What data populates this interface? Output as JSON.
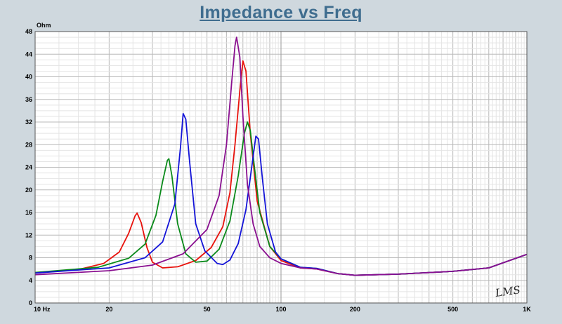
{
  "chart_data": {
    "type": "line",
    "title": "Impedance vs Freq",
    "ylabel": "Ohm",
    "xscale": "log",
    "xlim": [
      10,
      1000
    ],
    "ylim": [
      0,
      48
    ],
    "grid": true,
    "x_ticks": [
      {
        "value": 10,
        "label": "10  Hz"
      },
      {
        "value": 20,
        "label": "20"
      },
      {
        "value": 50,
        "label": "50"
      },
      {
        "value": 100,
        "label": "100"
      },
      {
        "value": 200,
        "label": "200"
      },
      {
        "value": 500,
        "label": "500"
      },
      {
        "value": 1000,
        "label": "1K"
      }
    ],
    "y_ticks": [
      0,
      4,
      8,
      12,
      16,
      20,
      24,
      28,
      32,
      36,
      40,
      44,
      48
    ],
    "series": [
      {
        "color": "#e8120c",
        "x": [
          10,
          15,
          19,
          22,
          24,
          25.5,
          26,
          27,
          28.5,
          30,
          33,
          38,
          45,
          52,
          58,
          62,
          65,
          68,
          70,
          72,
          75,
          80,
          90,
          100,
          120,
          140,
          170,
          200,
          300,
          500,
          700,
          1000
        ],
        "y": [
          5.3,
          5.9,
          7.0,
          9.0,
          12.3,
          15.4,
          15.9,
          14.2,
          9.8,
          7.2,
          6.2,
          6.4,
          7.5,
          9.8,
          13.5,
          19.5,
          28,
          37.5,
          42.8,
          41,
          30,
          18,
          10,
          7.5,
          6.2,
          6.0,
          5.2,
          4.9,
          5.1,
          5.6,
          6.2,
          8.6
        ]
      },
      {
        "color": "#0a8a1a",
        "x": [
          10,
          18,
          24,
          28,
          31,
          33,
          34.5,
          35,
          36,
          38,
          41,
          45,
          50,
          56,
          62,
          67,
          71,
          73,
          75,
          78,
          82,
          90,
          100,
          120,
          140,
          170,
          200,
          300,
          500,
          700,
          1000
        ],
        "y": [
          5.4,
          6.3,
          7.9,
          10.4,
          15.5,
          21.5,
          25.2,
          25.5,
          22.5,
          14,
          8.7,
          7.2,
          7.4,
          9.5,
          14.5,
          22.5,
          30,
          32,
          30.5,
          24,
          16,
          10,
          7.8,
          6.3,
          6.1,
          5.2,
          4.9,
          5.1,
          5.6,
          6.2,
          8.6
        ]
      },
      {
        "color": "#1414d8",
        "x": [
          10,
          20,
          28,
          33,
          37,
          39,
          40,
          41,
          42.5,
          45,
          49,
          55,
          58,
          62,
          67,
          72,
          76,
          79,
          81,
          84,
          88,
          95,
          100,
          120,
          140,
          170,
          200,
          300,
          500,
          700,
          1000
        ],
        "y": [
          5.3,
          6.2,
          8.0,
          10.8,
          17.5,
          27.5,
          33.5,
          32.5,
          25,
          14,
          9.2,
          7.0,
          6.8,
          7.6,
          10.5,
          16.5,
          24,
          29.5,
          29,
          22,
          14,
          9.0,
          7.8,
          6.3,
          6.1,
          5.2,
          4.9,
          5.1,
          5.6,
          6.2,
          8.6
        ]
      },
      {
        "color": "#8a1090",
        "x": [
          10,
          20,
          30,
          40,
          50,
          56,
          60,
          63,
          65,
          66,
          68,
          70,
          73,
          77,
          82,
          90,
          100,
          120,
          140,
          170,
          200,
          300,
          500,
          700,
          1000
        ],
        "y": [
          5.0,
          5.7,
          6.7,
          8.7,
          13.0,
          19.0,
          28.0,
          39.0,
          45.5,
          47.0,
          43.5,
          33.0,
          21.0,
          14.0,
          10.0,
          8.0,
          7.0,
          6.2,
          6.0,
          5.2,
          4.9,
          5.1,
          5.6,
          6.2,
          8.6
        ]
      }
    ]
  },
  "watermark": "LMS"
}
